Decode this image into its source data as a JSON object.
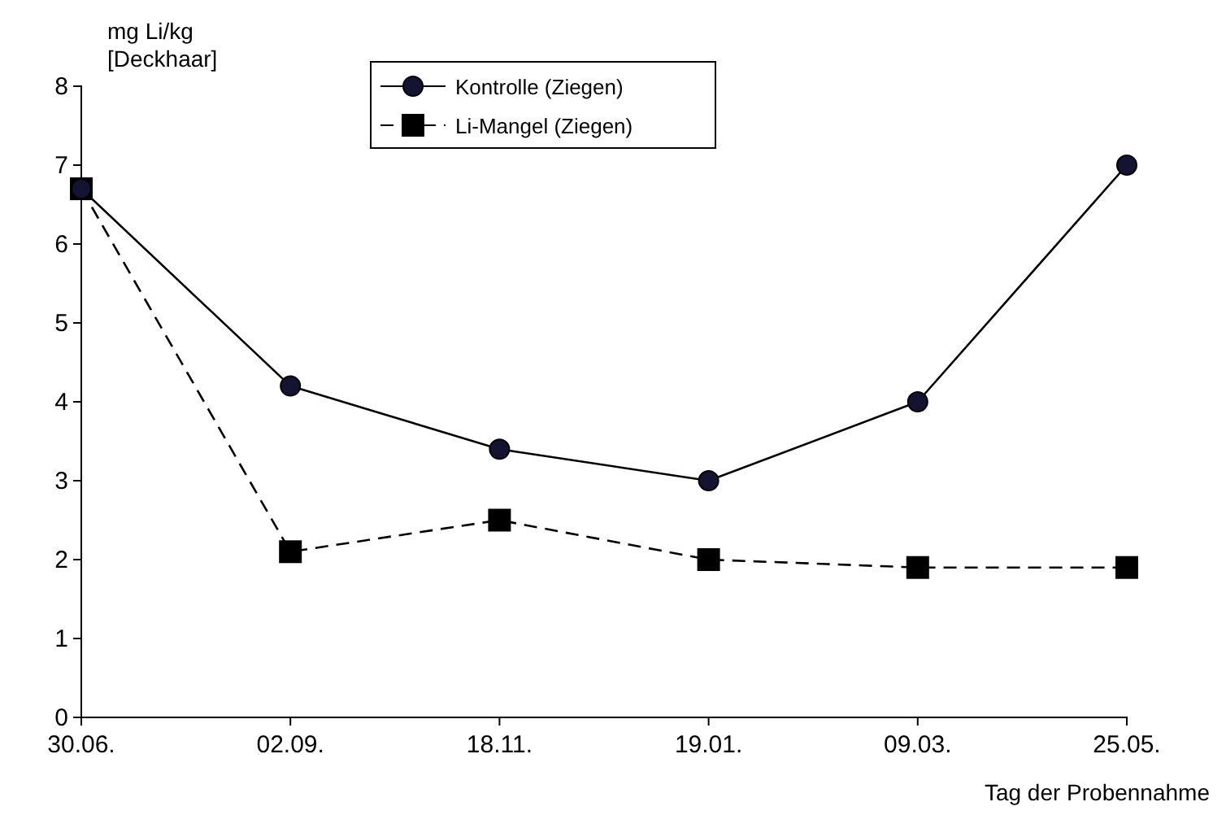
{
  "chart_data": {
    "type": "line",
    "ylabel": "mg Li/kg\n[Deckhaar]",
    "xlabel": "Tag der Probennahme",
    "categories": [
      "30.06.",
      "02.09.",
      "18.11.",
      "19.01.",
      "09.03.",
      "25.05."
    ],
    "series": [
      {
        "name": "Kontrolle (Ziegen)",
        "color": "#141432",
        "marker": "circle",
        "line_style": "solid",
        "values": [
          6.7,
          4.2,
          3.4,
          3.0,
          4.0,
          7.0
        ]
      },
      {
        "name": "Li-Mangel (Ziegen)",
        "color": "#000000",
        "marker": "square",
        "line_style": "dashed",
        "values": [
          6.7,
          2.1,
          2.5,
          2.0,
          1.9,
          1.9
        ]
      }
    ],
    "ylim": [
      0,
      8
    ],
    "yticks": [
      0,
      1,
      2,
      3,
      4,
      5,
      6,
      7,
      8
    ],
    "grid": false,
    "legend": "top"
  }
}
